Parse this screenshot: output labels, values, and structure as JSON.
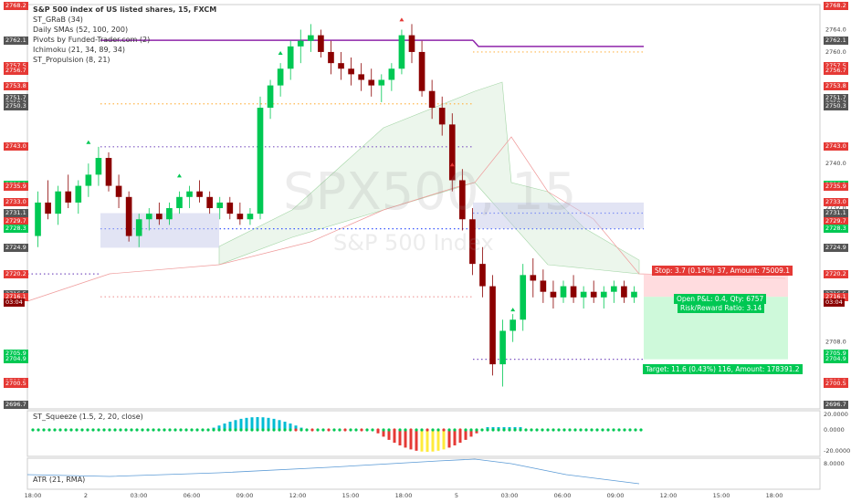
{
  "header": {
    "title": "S&P 500 index of US listed shares, 15, FXCM",
    "indicators": [
      "ST_GRaB (34)",
      "Daily SMAs (52, 100, 200)",
      "Pivots by Funded-Trader.com (2)",
      "Ichimoku (21, 34, 89, 34)",
      "ST_Propulsion (8, 21)"
    ]
  },
  "watermark": {
    "symbol": "SPX500, 15",
    "name": "S&P 500 Index"
  },
  "trade": {
    "stop_label": "Stop: 3.7 (0.14%) 37, Amount: 75009.1",
    "pnl_label": "Open P&L: 0.4, Qty: 6757",
    "ratio_label": "Risk/Reward Ratio: 3.14",
    "target_label": "Target: 11.6 (0.43%) 116, Amount: 178391.2"
  },
  "price_axis": {
    "ticks": [
      "2764.0",
      "2760.0",
      "2740.0",
      "2732.0",
      "2708.0"
    ],
    "right_labels": [
      {
        "text": "2768.2",
        "price": 2768.2,
        "color": "#e53935"
      },
      {
        "text": "2762.1",
        "price": 2762.1,
        "color": "#555555"
      },
      {
        "text": "2757.5",
        "price": 2757.5,
        "color": "#e53935"
      },
      {
        "text": "2756.7",
        "price": 2756.7,
        "color": "#e53935"
      },
      {
        "text": "2753.8",
        "price": 2753.8,
        "color": "#e53935"
      },
      {
        "text": "2751.7",
        "price": 2751.7,
        "color": "#555555"
      },
      {
        "text": "2750.7",
        "price": 2750.7,
        "color": "#555555"
      },
      {
        "text": "2750.3",
        "price": 2750.3,
        "color": "#555555"
      },
      {
        "text": "2743.0",
        "price": 2743.0,
        "color": "#e53935"
      },
      {
        "text": "2736.1",
        "price": 2736.1,
        "color": "#00c853"
      },
      {
        "text": "2735.9",
        "price": 2735.9,
        "color": "#e53935"
      },
      {
        "text": "2733.0",
        "price": 2733.0,
        "color": "#e53935"
      },
      {
        "text": "2731.1",
        "price": 2731.1,
        "color": "#555555"
      },
      {
        "text": "2729.7",
        "price": 2729.7,
        "color": "#e53935"
      },
      {
        "text": "2728.3",
        "price": 2728.3,
        "color": "#00c853"
      },
      {
        "text": "2724.9",
        "price": 2724.9,
        "color": "#555555"
      },
      {
        "text": "2720.2",
        "price": 2720.2,
        "color": "#e53935"
      },
      {
        "text": "2716.5",
        "price": 2716.5,
        "color": "#555555"
      },
      {
        "text": "2716.1",
        "price": 2716.1,
        "color": "#e53935"
      },
      {
        "text": "03:04",
        "price": 2715.0,
        "color": "#8b0000"
      },
      {
        "text": "2705.9",
        "price": 2705.9,
        "color": "#00c853"
      },
      {
        "text": "2704.9",
        "price": 2704.9,
        "color": "#00c853"
      },
      {
        "text": "2700.8",
        "price": 2700.8,
        "color": "#e53935"
      },
      {
        "text": "2700.5",
        "price": 2700.5,
        "color": "#e53935"
      },
      {
        "text": "2696.7",
        "price": 2696.7,
        "color": "#555555"
      }
    ],
    "left_labels": [
      {
        "text": "2768.2",
        "price": 2768.2,
        "color": "#e53935"
      },
      {
        "text": "2762.1",
        "price": 2762.1,
        "color": "#555555"
      },
      {
        "text": "2757.5",
        "price": 2757.5,
        "color": "#e53935"
      },
      {
        "text": "2756.7",
        "price": 2756.7,
        "color": "#e53935"
      },
      {
        "text": "2753.8",
        "price": 2753.8,
        "color": "#e53935"
      },
      {
        "text": "2751.7",
        "price": 2751.7,
        "color": "#555555"
      },
      {
        "text": "2750.7",
        "price": 2750.7,
        "color": "#555555"
      },
      {
        "text": "2750.3",
        "price": 2750.3,
        "color": "#555555"
      },
      {
        "text": "2743.0",
        "price": 2743.0,
        "color": "#e53935"
      },
      {
        "text": "2736.1",
        "price": 2736.1,
        "color": "#00c853"
      },
      {
        "text": "2735.9",
        "price": 2735.9,
        "color": "#e53935"
      },
      {
        "text": "2733.0",
        "price": 2733.0,
        "color": "#e53935"
      },
      {
        "text": "2731.1",
        "price": 2731.1,
        "color": "#555555"
      },
      {
        "text": "2729.7",
        "price": 2729.7,
        "color": "#e53935"
      },
      {
        "text": "2728.3",
        "price": 2728.3,
        "color": "#00c853"
      },
      {
        "text": "2724.9",
        "price": 2724.9,
        "color": "#555555"
      },
      {
        "text": "2720.2",
        "price": 2720.2,
        "color": "#e53935"
      },
      {
        "text": "2716.5",
        "price": 2716.5,
        "color": "#555555"
      },
      {
        "text": "2716.1",
        "price": 2716.1,
        "color": "#e53935"
      },
      {
        "text": "03:04",
        "price": 2715.0,
        "color": "#8b0000"
      },
      {
        "text": "2705.9",
        "price": 2705.9,
        "color": "#00c853"
      },
      {
        "text": "2704.9",
        "price": 2704.9,
        "color": "#00c853"
      },
      {
        "text": "2700.8",
        "price": 2700.8,
        "color": "#e53935"
      },
      {
        "text": "2700.5",
        "price": 2700.5,
        "color": "#e53935"
      },
      {
        "text": "2696.7",
        "price": 2696.7,
        "color": "#555555"
      }
    ]
  },
  "time_axis": [
    "18:00",
    "2",
    "03:00",
    "06:00",
    "09:00",
    "12:00",
    "15:00",
    "18:00",
    "5",
    "03:00",
    "06:00",
    "09:00",
    "12:00",
    "15:00",
    "18:00"
  ],
  "squeeze": {
    "label": "ST_Squeeze (1.5, 2, 20, close)",
    "ticks": [
      "20.0000",
      "0.0000",
      "-20.0000"
    ]
  },
  "atr": {
    "label": "ATR (21, RMA)",
    "ticks": [
      "8.0000"
    ]
  },
  "colors": {
    "up": "#00c853",
    "down": "#8b0000",
    "neutral": "#2962ff",
    "cloud": "#c8e6c9",
    "stop": "#e53935",
    "target": "#00e676"
  },
  "chart_data": {
    "type": "candlestick",
    "title": "S&P 500 index of US listed shares, 15, FXCM",
    "y_range": [
      2696.0,
      2768.5
    ],
    "candles": [
      [
        2727,
        2735,
        2725,
        2733
      ],
      [
        2733,
        2737,
        2730,
        2731
      ],
      [
        2731,
        2736,
        2729,
        2735
      ],
      [
        2735,
        2738,
        2732,
        2733
      ],
      [
        2733,
        2737,
        2731,
        2736
      ],
      [
        2736,
        2740,
        2734,
        2738
      ],
      [
        2738,
        2743,
        2736,
        2741
      ],
      [
        2741,
        2742,
        2735,
        2736
      ],
      [
        2736,
        2738,
        2732,
        2734
      ],
      [
        2734,
        2735,
        2726,
        2727
      ],
      [
        2727,
        2731,
        2725,
        2730
      ],
      [
        2730,
        2732,
        2728,
        2731
      ],
      [
        2731,
        2733,
        2729,
        2730
      ],
      [
        2730,
        2733,
        2729,
        2732
      ],
      [
        2732,
        2735,
        2731,
        2734
      ],
      [
        2734,
        2736,
        2732,
        2735
      ],
      [
        2735,
        2737,
        2733,
        2734
      ],
      [
        2734,
        2735,
        2731,
        2732
      ],
      [
        2732,
        2734,
        2730,
        2733
      ],
      [
        2733,
        2734,
        2730,
        2731
      ],
      [
        2731,
        2733,
        2729,
        2730
      ],
      [
        2730,
        2732,
        2729,
        2731
      ],
      [
        2731,
        2752,
        2730,
        2750
      ],
      [
        2750,
        2755,
        2748,
        2754
      ],
      [
        2754,
        2758,
        2752,
        2757
      ],
      [
        2757,
        2762,
        2755,
        2761
      ],
      [
        2761,
        2764,
        2758,
        2762
      ],
      [
        2762,
        2765,
        2760,
        2763
      ],
      [
        2763,
        2764,
        2759,
        2760
      ],
      [
        2760,
        2762,
        2756,
        2758
      ],
      [
        2758,
        2760,
        2755,
        2757
      ],
      [
        2757,
        2759,
        2754,
        2756
      ],
      [
        2756,
        2758,
        2753,
        2755
      ],
      [
        2755,
        2757,
        2752,
        2754
      ],
      [
        2754,
        2756,
        2751,
        2755
      ],
      [
        2755,
        2758,
        2753,
        2757
      ],
      [
        2757,
        2764,
        2756,
        2763
      ],
      [
        2763,
        2765,
        2758,
        2760
      ],
      [
        2760,
        2762,
        2752,
        2753
      ],
      [
        2753,
        2755,
        2748,
        2750
      ],
      [
        2750,
        2752,
        2745,
        2747
      ],
      [
        2747,
        2749,
        2735,
        2737
      ],
      [
        2737,
        2739,
        2728,
        2730
      ],
      [
        2730,
        2732,
        2720,
        2722
      ],
      [
        2722,
        2725,
        2716,
        2718
      ],
      [
        2718,
        2720,
        2702,
        2704
      ],
      [
        2704,
        2712,
        2700,
        2710
      ],
      [
        2710,
        2713,
        2708,
        2712
      ],
      [
        2712,
        2722,
        2710,
        2720
      ],
      [
        2720,
        2723,
        2716,
        2719
      ],
      [
        2719,
        2721,
        2715,
        2717
      ],
      [
        2717,
        2719,
        2714,
        2716
      ],
      [
        2716,
        2719,
        2715,
        2718
      ],
      [
        2718,
        2720,
        2715,
        2716
      ],
      [
        2716,
        2718,
        2714,
        2717
      ],
      [
        2717,
        2719,
        2715,
        2716
      ],
      [
        2716,
        2718,
        2714,
        2717
      ],
      [
        2717,
        2719,
        2715,
        2718
      ],
      [
        2718,
        2719,
        2715,
        2716
      ],
      [
        2716,
        2718,
        2715,
        2717
      ]
    ]
  }
}
